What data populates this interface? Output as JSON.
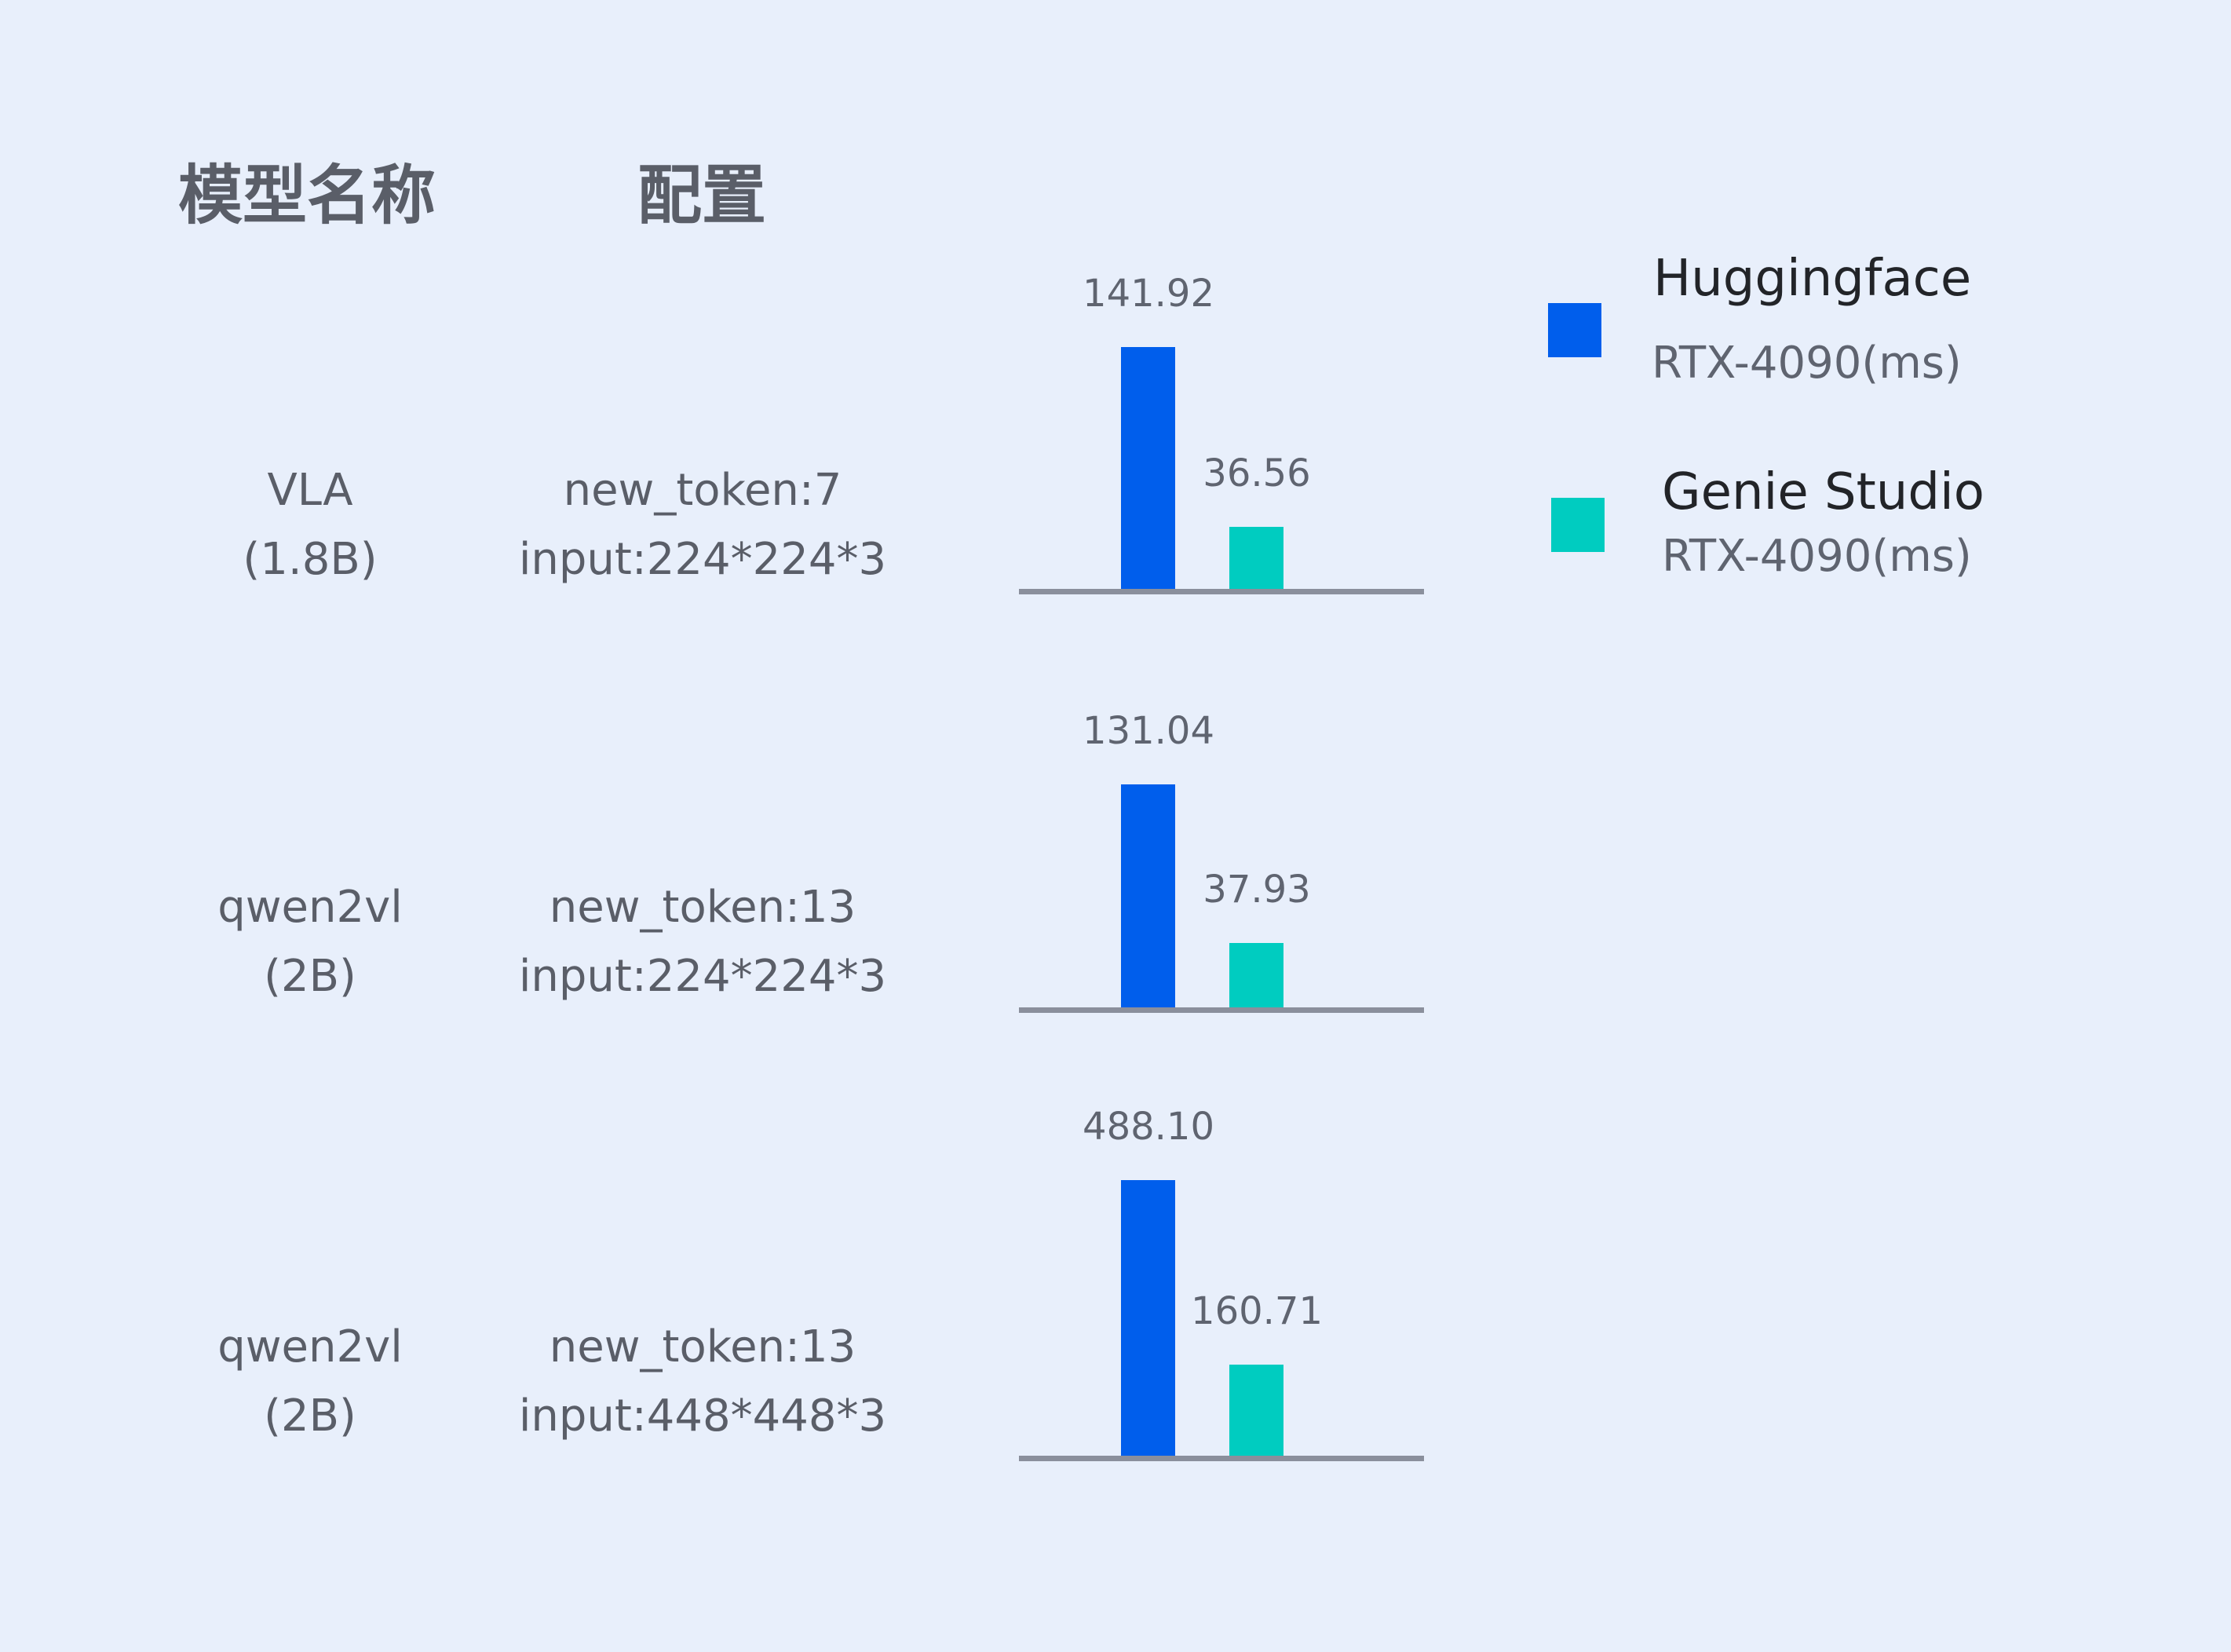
{
  "header": {
    "model_name": "模型名称",
    "config": "配置"
  },
  "rows": [
    {
      "model": "VLA",
      "size": "(1.8B)",
      "config_line1": "new_token:7",
      "config_line2": "input:224*224*3"
    },
    {
      "model": "qwen2vl",
      "size": "(2B)",
      "config_line1": "new_token:13",
      "config_line2": "input:224*224*3"
    },
    {
      "model": "qwen2vl",
      "size": "(2B)",
      "config_line1": "new_token:13",
      "config_line2": "input:448*448*3"
    }
  ],
  "legend": [
    {
      "name": "Huggingface",
      "unit": "RTX-4090(ms)",
      "color": "#005eec"
    },
    {
      "name": "Genie Studio",
      "unit": "RTX-4090(ms)",
      "color": "#00ccc0"
    }
  ],
  "chart_data": {
    "type": "bar",
    "categories": [
      "VLA (1.8B) new_token:7 input:224*224*3",
      "qwen2vl (2B) new_token:13 input:224*224*3",
      "qwen2vl (2B) new_token:13 input:448*448*3"
    ],
    "series": [
      {
        "name": "Huggingface RTX-4090(ms)",
        "values": [
          141.92,
          131.04,
          488.1
        ],
        "labels": [
          "141.92",
          "131.04",
          "488.10"
        ]
      },
      {
        "name": "Genie Studio RTX-4090(ms)",
        "values": [
          36.56,
          37.93,
          160.71
        ],
        "labels": [
          "36.56",
          "37.93",
          "160.71"
        ]
      }
    ],
    "xlabel": "",
    "ylabel": "",
    "grid": false,
    "legend_position": "right"
  }
}
